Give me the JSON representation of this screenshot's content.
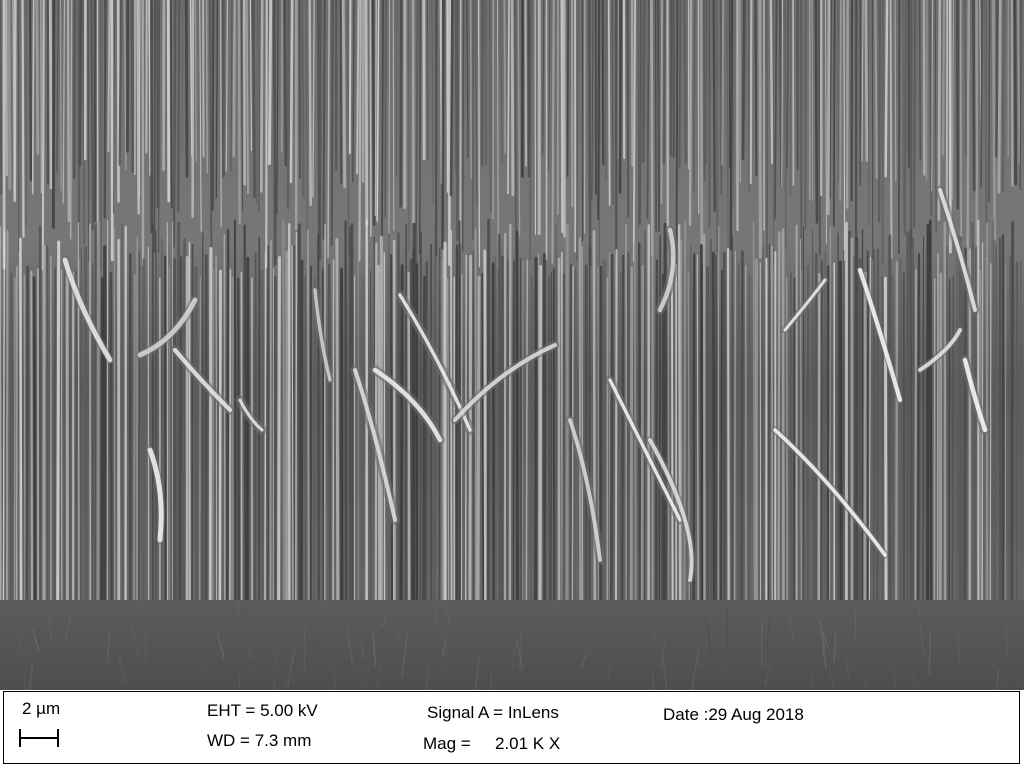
{
  "image": {
    "description_icon": "sem-micrograph-vertical-nanowire-array",
    "colors": {
      "background": "#6a6a6a",
      "wire_dark": "#3c3c3c",
      "wire_light": "#c8c8c8",
      "substrate": "#585858"
    }
  },
  "databar": {
    "scale_label": "2 µm",
    "eht": "EHT =  5.00 kV",
    "wd": "WD =  7.3 mm",
    "signal": "Signal A = InLens",
    "mag_label": "Mag =",
    "mag_value": "2.01 K X",
    "date": "Date :29 Aug 2018"
  }
}
